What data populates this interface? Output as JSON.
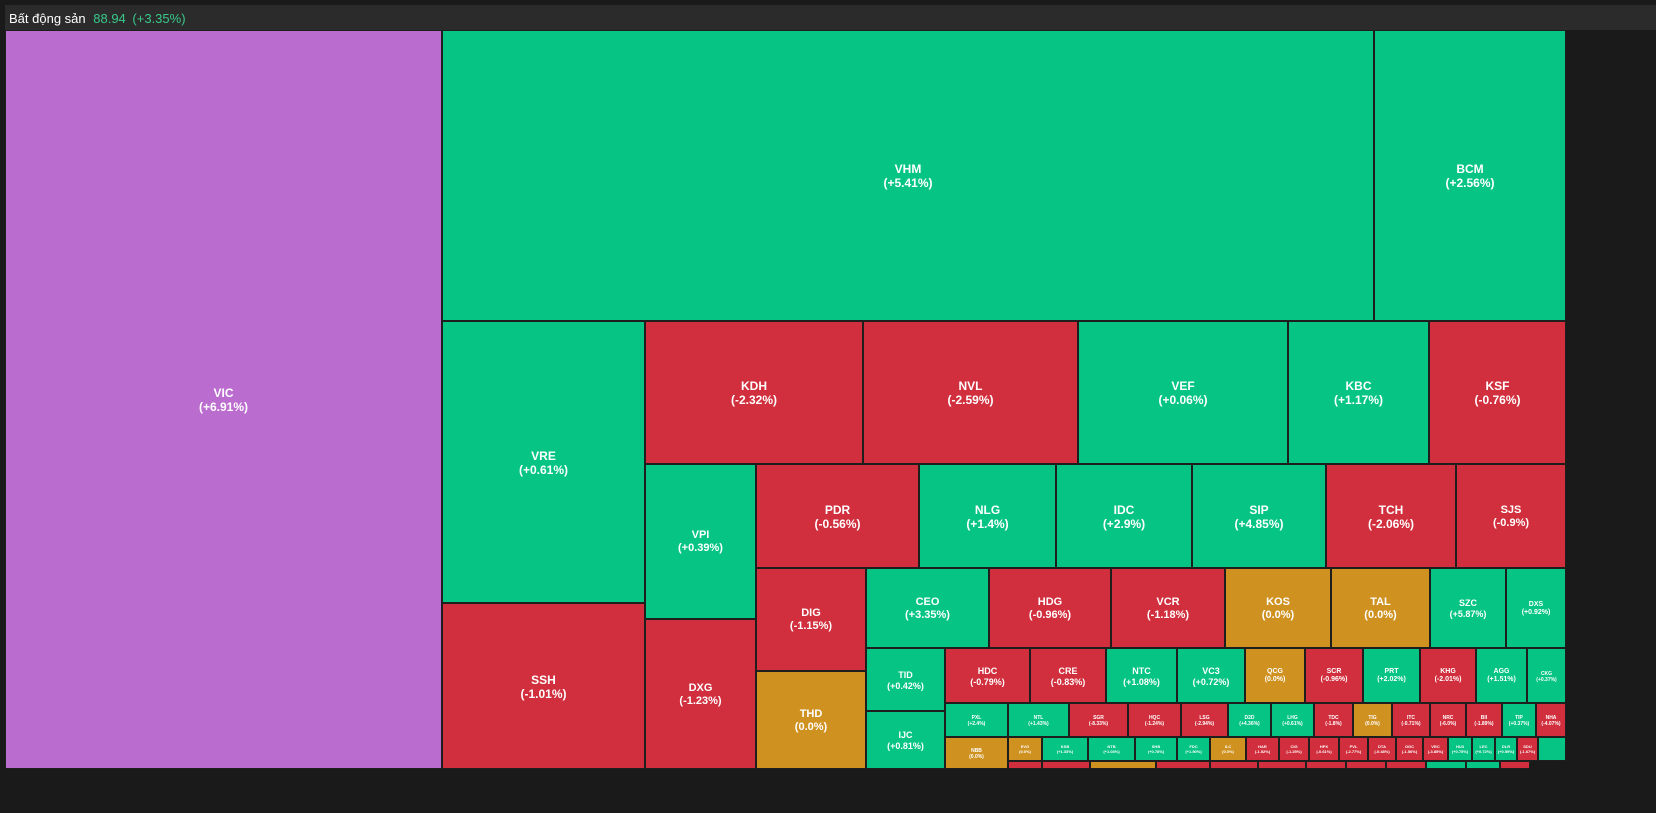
{
  "header": {
    "title": "Bất động sản",
    "index_value": "88.94",
    "index_change": "(+3.35%)"
  },
  "colors": {
    "up": "#06c584",
    "down": "#d12f3d",
    "flat": "#cf9120",
    "ceiling": "#bb6ccf"
  },
  "chart_data": {
    "type": "treemap",
    "title": "Bất động sản",
    "tiles": [
      {
        "ticker": "VIC",
        "change": "(+6.91%)",
        "state": "ceiling",
        "shown": true
      },
      {
        "ticker": "VHM",
        "change": "(+5.41%)",
        "state": "up",
        "shown": true
      },
      {
        "ticker": "BCM",
        "change": "(+2.56%)",
        "state": "up",
        "shown": true
      },
      {
        "ticker": "VRE",
        "change": "(+0.61%)",
        "state": "up",
        "shown": true
      },
      {
        "ticker": "SSH",
        "change": "(-1.01%)",
        "state": "down",
        "shown": true
      },
      {
        "ticker": "KDH",
        "change": "(-2.32%)",
        "state": "down",
        "shown": true
      },
      {
        "ticker": "NVL",
        "change": "(-2.59%)",
        "state": "down",
        "shown": true
      },
      {
        "ticker": "VEF",
        "change": "(+0.06%)",
        "state": "up",
        "shown": true
      },
      {
        "ticker": "KBC",
        "change": "(+1.17%)",
        "state": "up",
        "shown": true
      },
      {
        "ticker": "KSF",
        "change": "(-0.76%)",
        "state": "down",
        "shown": true
      },
      {
        "ticker": "VPI",
        "change": "(+0.39%)",
        "state": "up",
        "shown": true
      },
      {
        "ticker": "DXG",
        "change": "(-1.23%)",
        "state": "down",
        "shown": true
      },
      {
        "ticker": "PDR",
        "change": "(-0.56%)",
        "state": "down",
        "shown": true
      },
      {
        "ticker": "NLG",
        "change": "(+1.4%)",
        "state": "up",
        "shown": true
      },
      {
        "ticker": "IDC",
        "change": "(+2.9%)",
        "state": "up",
        "shown": true
      },
      {
        "ticker": "SIP",
        "change": "(+4.85%)",
        "state": "up",
        "shown": true
      },
      {
        "ticker": "TCH",
        "change": "(-2.06%)",
        "state": "down",
        "shown": true
      },
      {
        "ticker": "SJS",
        "change": "(-0.9%)",
        "state": "down",
        "shown": true
      },
      {
        "ticker": "DIG",
        "change": "(-1.15%)",
        "state": "down",
        "shown": true
      },
      {
        "ticker": "THD",
        "change": "(0.0%)",
        "state": "flat",
        "shown": true
      },
      {
        "ticker": "CEO",
        "change": "(+3.35%)",
        "state": "up",
        "shown": true
      },
      {
        "ticker": "HDG",
        "change": "(-0.96%)",
        "state": "down",
        "shown": true
      },
      {
        "ticker": "VCR",
        "change": "(-1.18%)",
        "state": "down",
        "shown": true
      },
      {
        "ticker": "KOS",
        "change": "(0.0%)",
        "state": "flat",
        "shown": true
      },
      {
        "ticker": "TAL",
        "change": "(0.0%)",
        "state": "flat",
        "shown": true
      },
      {
        "ticker": "SZC",
        "change": "(+5.87%)",
        "state": "up",
        "shown": true
      },
      {
        "ticker": "DXS",
        "change": "(+0.92%)",
        "state": "up",
        "shown": true
      },
      {
        "ticker": "TID",
        "change": "(+0.42%)",
        "state": "up",
        "shown": true
      },
      {
        "ticker": "IJC",
        "change": "(+0.81%)",
        "state": "up",
        "shown": true
      },
      {
        "ticker": "HDC",
        "change": "(-0.79%)",
        "state": "down",
        "shown": true
      },
      {
        "ticker": "CRE",
        "change": "(-0.83%)",
        "state": "down",
        "shown": true
      },
      {
        "ticker": "NTC",
        "change": "(+1.08%)",
        "state": "up",
        "shown": true
      },
      {
        "ticker": "VC3",
        "change": "(+0.72%)",
        "state": "up",
        "shown": true
      },
      {
        "ticker": "QCG",
        "change": "(0.0%)",
        "state": "flat",
        "shown": true
      },
      {
        "ticker": "SCR",
        "change": "(-0.96%)",
        "state": "down",
        "shown": true
      },
      {
        "ticker": "PRT",
        "change": "(+2.02%)",
        "state": "up",
        "shown": true
      },
      {
        "ticker": "KHG",
        "change": "(-2.01%)",
        "state": "down",
        "shown": true
      },
      {
        "ticker": "AGG",
        "change": "(+1.51%)",
        "state": "up",
        "shown": true
      },
      {
        "ticker": "CKG",
        "change": "(+0.37%)",
        "state": "up",
        "shown": true
      },
      {
        "ticker": "PXL",
        "change": "(+2.4%)",
        "state": "up",
        "shown": true
      },
      {
        "ticker": "NTL",
        "change": "(+1.43%)",
        "state": "up",
        "shown": true
      },
      {
        "ticker": "SGR",
        "change": "(-8.33%)",
        "state": "down",
        "shown": true
      },
      {
        "ticker": "HQC",
        "change": "(-1.24%)",
        "state": "down",
        "shown": true
      },
      {
        "ticker": "LSG",
        "change": "(-2.94%)",
        "state": "down",
        "shown": true
      },
      {
        "ticker": "D2D",
        "change": "(+4.36%)",
        "state": "up",
        "shown": true
      },
      {
        "ticker": "LHG",
        "change": "(+0.61%)",
        "state": "up",
        "shown": true
      },
      {
        "ticker": "TDC",
        "change": "(-1.8%)",
        "state": "down",
        "shown": true
      },
      {
        "ticker": "TIG",
        "change": "(0.0%)",
        "state": "flat",
        "shown": true
      },
      {
        "ticker": "ITC",
        "change": "(-0.71%)",
        "state": "down",
        "shown": true
      },
      {
        "ticker": "NRC",
        "change": "(-6.0%)",
        "state": "down",
        "shown": true
      },
      {
        "ticker": "BII",
        "change": "(-1.89%)",
        "state": "down",
        "shown": true
      },
      {
        "ticker": "TIP",
        "change": "(+0.37%)",
        "state": "up",
        "shown": true
      },
      {
        "ticker": "NHA",
        "change": "(-4.07%)",
        "state": "down",
        "shown": true
      },
      {
        "ticker": "NBB",
        "change": "(0.0%)",
        "state": "flat",
        "shown": true
      },
      {
        "ticker": "EVG",
        "change": "(0.0%)",
        "state": "flat",
        "shown": true
      },
      {
        "ticker": "KSB",
        "change": "(+1.33%)",
        "state": "up",
        "shown": true
      },
      {
        "ticker": "NTB",
        "change": "(+1.03%)",
        "state": "up",
        "shown": true
      },
      {
        "ticker": "SHB",
        "change": "(+0.78%)",
        "state": "up",
        "shown": true
      },
      {
        "ticker": "FDC",
        "change": "(+1.90%)",
        "state": "up",
        "shown": true
      },
      {
        "ticker": "ILC",
        "change": "(0.0%)",
        "state": "flat",
        "shown": true
      },
      {
        "ticker": "HAR",
        "change": "(-1.52%)",
        "state": "down",
        "shown": true
      },
      {
        "ticker": "CIG",
        "change": "(-1.25%)",
        "state": "down",
        "shown": true
      },
      {
        "ticker": "HPX",
        "change": "(-0.61%)",
        "state": "down",
        "shown": true
      },
      {
        "ticker": "PVL",
        "change": "(-2.77%)",
        "state": "down",
        "shown": true
      },
      {
        "ticker": "DTA",
        "change": "(-0.48%)",
        "state": "down",
        "shown": true
      },
      {
        "ticker": "OGC",
        "change": "(-1.56%)",
        "state": "down",
        "shown": true
      },
      {
        "ticker": "VRC",
        "change": "(-3.85%)",
        "state": "down",
        "shown": true
      },
      {
        "ticker": "HU3",
        "change": "(+0.75%)",
        "state": "up",
        "shown": true
      },
      {
        "ticker": "LEC",
        "change": "(+0.72%)",
        "state": "up",
        "shown": true
      },
      {
        "ticker": "DLR",
        "change": "(+0.59%)",
        "state": "up",
        "shown": true
      },
      {
        "ticker": "SDU",
        "change": "(-1.67%)",
        "state": "down",
        "shown": true
      },
      {
        "ticker": "",
        "change": "",
        "state": "up",
        "shown": false
      },
      {
        "ticker": "",
        "change": "",
        "state": "down",
        "shown": false
      },
      {
        "ticker": "",
        "change": "",
        "state": "down",
        "shown": false
      },
      {
        "ticker": "",
        "change": "",
        "state": "flat",
        "shown": false
      },
      {
        "ticker": "",
        "change": "",
        "state": "down",
        "shown": false
      },
      {
        "ticker": "",
        "change": "",
        "state": "down",
        "shown": false
      },
      {
        "ticker": "",
        "change": "",
        "state": "down",
        "shown": false
      },
      {
        "ticker": "",
        "change": "",
        "state": "down",
        "shown": false
      },
      {
        "ticker": "",
        "change": "",
        "state": "down",
        "shown": false
      },
      {
        "ticker": "",
        "change": "",
        "state": "down",
        "shown": false
      },
      {
        "ticker": "",
        "change": "",
        "state": "up",
        "shown": false
      },
      {
        "ticker": "",
        "change": "",
        "state": "up",
        "shown": false
      },
      {
        "ticker": "",
        "change": "",
        "state": "down",
        "shown": false
      }
    ]
  }
}
